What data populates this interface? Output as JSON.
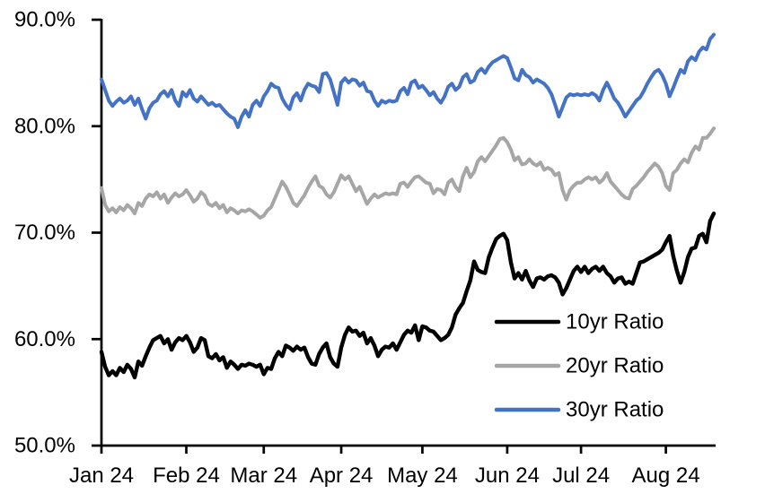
{
  "chart_data": {
    "type": "line",
    "title": "",
    "x_axis": {
      "tick_labels": [
        "Jan 24",
        "Feb 24",
        "Mar 24",
        "Apr 24",
        "May 24",
        "Jun 24",
        "Jul 24",
        "Aug 24"
      ],
      "month_start_indices": [
        0,
        23,
        44,
        65,
        87,
        110,
        130,
        153
      ],
      "points_total": 167,
      "frequency": "daily-weekdays",
      "range": "Jan 2024 - Aug 2024"
    },
    "y_axis": {
      "tick_labels": [
        "90.0%",
        "80.0%",
        "70.0%",
        "60.0%",
        "50.0%"
      ],
      "tick_values": [
        90,
        80,
        70,
        60,
        50
      ],
      "min": 50,
      "max": 90,
      "format": "percent",
      "grid": "off"
    },
    "legend": {
      "position": "inside-bottom-right",
      "entries": [
        {
          "label": "10yr Ratio",
          "color": "#000000"
        },
        {
          "label": "20yr Ratio",
          "color": "#A6A6A6"
        },
        {
          "label": "30yr Ratio",
          "color": "#4472C4"
        }
      ]
    },
    "series": [
      {
        "name": "10yr Ratio",
        "color": "#000000",
        "stroke_width": 4.4,
        "values": [
          58.8,
          57.4,
          56.6,
          57.0,
          56.6,
          57.3,
          56.9,
          57.6,
          57.2,
          56.4,
          57.9,
          57.5,
          58.4,
          59.2,
          59.9,
          60.1,
          60.3,
          59.6,
          60.0,
          59.0,
          59.7,
          60.1,
          59.9,
          60.3,
          59.7,
          58.8,
          59.2,
          60.1,
          59.9,
          58.4,
          58.2,
          58.6,
          58.0,
          58.3,
          57.3,
          57.9,
          57.6,
          57.2,
          57.6,
          57.5,
          57.7,
          57.6,
          57.4,
          57.6,
          56.7,
          57.3,
          57.2,
          58.2,
          58.8,
          58.4,
          59.4,
          59.2,
          58.9,
          59.3,
          59.0,
          59.2,
          58.3,
          57.7,
          57.6,
          58.6,
          59.2,
          59.6,
          58.3,
          57.7,
          57.4,
          59.2,
          60.4,
          61.1,
          60.7,
          60.8,
          60.3,
          60.6,
          59.6,
          60.1,
          59.4,
          58.4,
          59.0,
          59.3,
          59.2,
          59.6,
          59.0,
          59.7,
          60.4,
          60.8,
          60.6,
          61.3,
          59.9,
          61.2,
          61.1,
          60.8,
          60.7,
          60.3,
          59.9,
          60.1,
          60.4,
          61.1,
          62.3,
          62.9,
          63.4,
          64.5,
          65.5,
          67.3,
          66.5,
          66.3,
          66.2,
          67.7,
          68.6,
          69.4,
          69.7,
          69.9,
          69.3,
          67.2,
          65.7,
          66.2,
          65.6,
          66.4,
          65.5,
          64.9,
          65.7,
          65.8,
          65.6,
          65.9,
          66.0,
          65.8,
          65.3,
          64.2,
          64.8,
          65.6,
          66.4,
          66.8,
          66.3,
          66.8,
          66.2,
          66.6,
          66.8,
          66.4,
          66.8,
          66.2,
          65.9,
          65.3,
          65.7,
          65.8,
          65.2,
          65.4,
          65.2,
          66.2,
          67.2,
          67.3,
          67.5,
          67.7,
          67.9,
          68.1,
          68.4,
          69.1,
          69.7,
          67.8,
          66.4,
          65.3,
          66.3,
          67.7,
          68.5,
          68.6,
          69.7,
          69.9,
          69.1,
          71.1,
          71.8
        ]
      },
      {
        "name": "20yr Ratio",
        "color": "#A6A6A6",
        "stroke_width": 4.0,
        "values": [
          74.2,
          72.6,
          72.0,
          72.3,
          71.9,
          72.4,
          72.1,
          72.6,
          72.3,
          71.8,
          72.8,
          72.5,
          73.2,
          73.6,
          73.4,
          73.8,
          73.2,
          73.6,
          72.8,
          73.3,
          73.7,
          73.4,
          73.6,
          74.0,
          73.5,
          72.9,
          73.2,
          73.8,
          73.5,
          72.7,
          72.5,
          72.8,
          72.3,
          72.6,
          71.9,
          72.3,
          72.1,
          71.8,
          72.1,
          72.0,
          72.2,
          72.0,
          71.7,
          71.4,
          71.6,
          72.1,
          72.4,
          73.2,
          74.0,
          74.8,
          74.3,
          73.6,
          72.8,
          72.5,
          73.0,
          73.5,
          74.2,
          74.8,
          75.3,
          74.4,
          74.2,
          73.6,
          73.3,
          73.8,
          74.6,
          75.4,
          75.0,
          75.3,
          74.6,
          73.9,
          74.3,
          73.5,
          72.7,
          73.2,
          73.6,
          73.3,
          73.5,
          73.7,
          73.6,
          73.7,
          73.6,
          74.6,
          74.7,
          74.3,
          74.8,
          75.2,
          75.3,
          75.0,
          74.7,
          74.6,
          73.7,
          74.1,
          74.0,
          73.6,
          74.7,
          75.0,
          74.3,
          73.9,
          75.3,
          76.1,
          75.2,
          75.7,
          76.7,
          77.1,
          76.7,
          77.2,
          77.7,
          78.2,
          78.8,
          78.9,
          78.5,
          77.8,
          76.8,
          77.1,
          76.4,
          76.5,
          76.9,
          76.5,
          76.3,
          76.6,
          75.9,
          76.1,
          75.9,
          75.4,
          75.6,
          74.0,
          73.1,
          74.0,
          74.4,
          74.7,
          74.7,
          75.0,
          75.2,
          75.0,
          75.2,
          74.7,
          75.0,
          75.6,
          74.8,
          74.4,
          74.0,
          73.6,
          73.3,
          73.2,
          74.1,
          74.4,
          74.8,
          75.2,
          75.7,
          76.1,
          76.5,
          76.2,
          75.6,
          74.4,
          74.0,
          75.6,
          75.9,
          76.5,
          76.9,
          76.6,
          77.5,
          78.1,
          77.8,
          78.9,
          78.9,
          79.3,
          79.8
        ]
      },
      {
        "name": "30yr Ratio",
        "color": "#4472C4",
        "stroke_width": 4.0,
        "values": [
          84.4,
          83.4,
          82.4,
          81.9,
          82.3,
          82.6,
          82.2,
          82.4,
          82.8,
          82.0,
          82.6,
          81.6,
          80.7,
          81.7,
          82.2,
          82.4,
          83.0,
          83.3,
          82.8,
          83.4,
          82.4,
          81.9,
          83.2,
          82.8,
          83.4,
          82.6,
          82.3,
          82.8,
          82.4,
          82.0,
          82.2,
          81.9,
          82.0,
          81.6,
          81.2,
          80.9,
          80.7,
          79.9,
          80.9,
          81.5,
          80.9,
          82.0,
          82.4,
          81.9,
          82.8,
          83.3,
          84.0,
          83.7,
          83.6,
          82.6,
          82.0,
          81.6,
          82.7,
          83.1,
          82.4,
          83.4,
          84.0,
          83.8,
          83.7,
          83.2,
          84.9,
          85.0,
          84.4,
          83.2,
          82.0,
          84.1,
          84.5,
          84.1,
          84.4,
          84.3,
          83.8,
          84.1,
          83.3,
          83.2,
          82.4,
          81.9,
          82.4,
          82.2,
          82.4,
          82.3,
          82.4,
          83.3,
          83.6,
          83.0,
          84.1,
          84.3,
          83.6,
          83.8,
          83.4,
          82.9,
          83.2,
          82.6,
          82.2,
          82.8,
          83.7,
          84.0,
          83.4,
          83.7,
          84.6,
          84.9,
          84.1,
          84.3,
          85.1,
          85.4,
          85.0,
          85.6,
          86.0,
          86.2,
          86.4,
          86.6,
          86.4,
          85.5,
          84.5,
          84.3,
          85.3,
          84.8,
          84.6,
          84.1,
          84.4,
          84.2,
          84.0,
          83.6,
          83.0,
          82.0,
          80.9,
          81.8,
          82.7,
          83.0,
          82.9,
          83.0,
          82.9,
          83.0,
          82.9,
          83.1,
          82.9,
          82.4,
          83.4,
          84.1,
          83.4,
          82.6,
          82.2,
          81.6,
          80.9,
          81.4,
          81.9,
          82.4,
          82.7,
          83.3,
          84.0,
          84.6,
          85.1,
          85.3,
          84.8,
          84.0,
          82.8,
          83.6,
          84.5,
          85.3,
          85.0,
          86.1,
          86.5,
          86.2,
          87.0,
          87.4,
          87.2,
          88.2,
          88.6
        ]
      }
    ],
    "colors": {
      "axis": "#000000",
      "background": "#ffffff",
      "series_10yr": "#000000",
      "series_20yr": "#A6A6A6",
      "series_30yr": "#4472C4"
    }
  }
}
